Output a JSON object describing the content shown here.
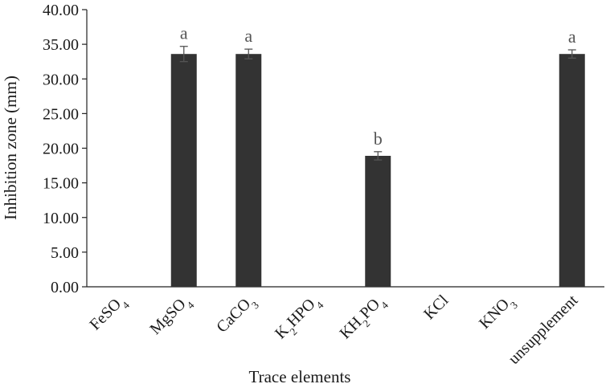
{
  "chart_data": {
    "type": "bar",
    "xlabel": "Trace elements",
    "ylabel": "Inhibition zone (mm)",
    "ylim": [
      0,
      40
    ],
    "yticks": [
      "0.00",
      "5.00",
      "10.00",
      "15.00",
      "20.00",
      "25.00",
      "30.00",
      "35.00",
      "40.00"
    ],
    "grid": false,
    "legend": "none",
    "categories": [
      {
        "label": "FeSO",
        "sub": "4",
        "tail": ""
      },
      {
        "label": "MgSO",
        "sub": "4",
        "tail": ""
      },
      {
        "label": "CaCO",
        "sub": "3",
        "tail": ""
      },
      {
        "label": "K",
        "sub": "2",
        "tail": "HPO",
        "sub2": "4"
      },
      {
        "label": "KH",
        "sub": "2",
        "tail": "PO",
        "sub2": "4"
      },
      {
        "label": "KCl",
        "sub": "",
        "tail": ""
      },
      {
        "label": "KNO",
        "sub": "3",
        "tail": ""
      },
      {
        "label": "unsupplement",
        "sub": "",
        "tail": ""
      }
    ],
    "values": [
      0,
      33.6,
      33.6,
      0,
      18.9,
      0,
      0,
      33.6
    ],
    "errors": [
      0,
      1.1,
      0.7,
      0,
      0.6,
      0,
      0,
      0.6
    ],
    "significance": [
      "",
      "a",
      "a",
      "",
      "b",
      "",
      "",
      "a"
    ],
    "colors": {
      "bar": "#333333",
      "axis": "#222222",
      "error": "#555555"
    }
  }
}
